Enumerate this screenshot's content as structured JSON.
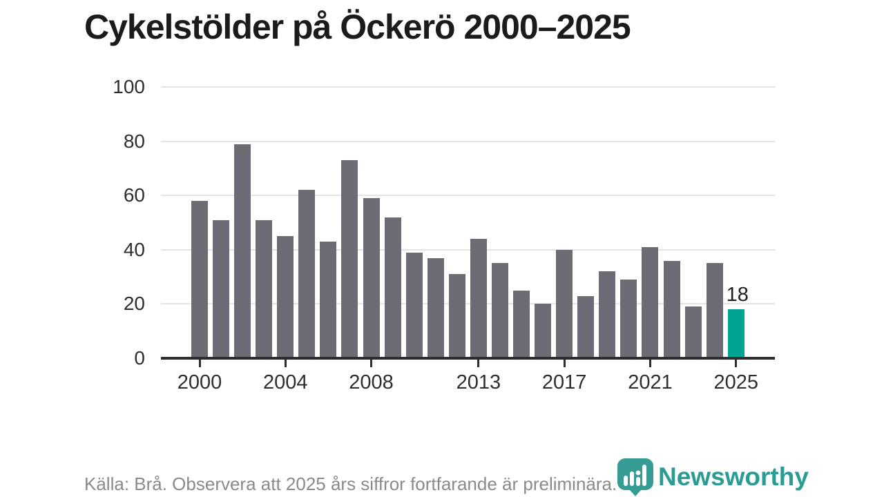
{
  "title": "Cykelstölder på Öckerö 2000–2025",
  "footer": {
    "source_note": "Källa: Brå. Observera att 2025 års siffror fortfarande är preliminära."
  },
  "branding": {
    "name": "Newsworthy",
    "icon": "newsworthy-pin-barchart-icon",
    "icon_color": "#379d94",
    "wordmark_color": "#2b9c94"
  },
  "chart_data": {
    "type": "bar",
    "title": "Cykelstölder på Öckerö 2000–2025",
    "x": [
      2000,
      2001,
      2002,
      2003,
      2004,
      2005,
      2006,
      2007,
      2008,
      2009,
      2010,
      2011,
      2012,
      2013,
      2014,
      2015,
      2016,
      2017,
      2018,
      2019,
      2020,
      2021,
      2022,
      2023,
      2024,
      2025
    ],
    "values": [
      58,
      51,
      79,
      51,
      45,
      62,
      43,
      73,
      59,
      52,
      39,
      37,
      31,
      44,
      35,
      25,
      20,
      40,
      23,
      32,
      29,
      41,
      36,
      19,
      35,
      18
    ],
    "bar_color": "#6d6c74",
    "highlight": {
      "x": 2025,
      "value": 18,
      "label": "18",
      "color": "#00a394"
    },
    "ylim": [
      0,
      100
    ],
    "yticks": [
      0,
      20,
      40,
      60,
      80,
      100
    ],
    "xticks": [
      2000,
      2004,
      2008,
      2013,
      2017,
      2021,
      2025
    ],
    "grid": "horizontal",
    "gridline_color": "#e4e4e4",
    "axis_color": "#2d2d2d"
  }
}
